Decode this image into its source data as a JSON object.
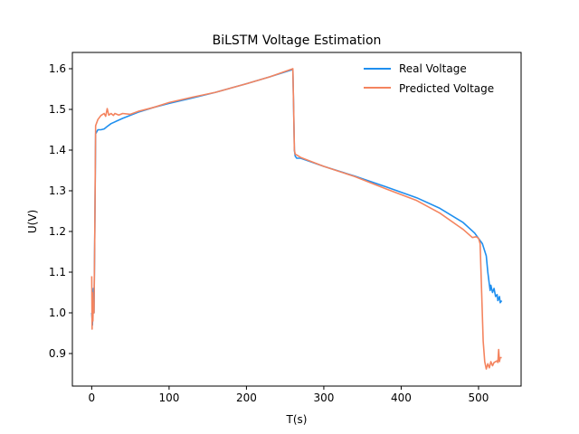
{
  "chart_data": {
    "type": "line",
    "title": "BiLSTM Voltage Estimation",
    "xlabel": "T(s)",
    "ylabel": "U(V)",
    "xlim": [
      -25,
      555
    ],
    "ylim": [
      0.82,
      1.64
    ],
    "x_ticks": [
      0,
      100,
      200,
      300,
      400,
      500
    ],
    "y_ticks": [
      0.9,
      1.0,
      1.1,
      1.2,
      1.3,
      1.4,
      1.5,
      1.6
    ],
    "x_tick_labels": [
      "0",
      "100",
      "200",
      "300",
      "400",
      "500"
    ],
    "y_tick_labels": [
      "0.9",
      "1.0",
      "1.1",
      "1.2",
      "1.3",
      "1.4",
      "1.5",
      "1.6"
    ],
    "grid": false,
    "legend_position": "top-right",
    "series": [
      {
        "name": "Real Voltage",
        "color": "#1f8fef",
        "x": [
          0,
          1,
          2,
          3,
          4,
          5,
          8,
          12,
          16,
          20,
          25,
          40,
          60,
          80,
          100,
          130,
          160,
          200,
          230,
          260,
          261,
          262,
          263,
          265,
          270,
          300,
          340,
          380,
          420,
          450,
          480,
          495,
          505,
          510,
          512,
          514,
          515,
          516,
          518,
          520,
          522,
          524,
          525,
          527,
          528,
          530
        ],
        "y": [
          1.0,
          0.97,
          1.06,
          1.0,
          1.2,
          1.44,
          1.45,
          1.45,
          1.452,
          1.458,
          1.465,
          1.478,
          1.493,
          1.505,
          1.515,
          1.528,
          1.542,
          1.563,
          1.58,
          1.598,
          1.5,
          1.4,
          1.385,
          1.38,
          1.38,
          1.36,
          1.336,
          1.31,
          1.283,
          1.257,
          1.222,
          1.196,
          1.17,
          1.14,
          1.1,
          1.07,
          1.055,
          1.068,
          1.05,
          1.06,
          1.04,
          1.045,
          1.03,
          1.04,
          1.025,
          1.03
        ]
      },
      {
        "name": "Predicted Voltage",
        "color": "#f4845f",
        "x": [
          0,
          0.5,
          1,
          1.5,
          2,
          3,
          4,
          5,
          8,
          12,
          16,
          18,
          20,
          22,
          25,
          28,
          30,
          35,
          40,
          50,
          60,
          80,
          100,
          130,
          160,
          200,
          230,
          260,
          261,
          262,
          263,
          265,
          270,
          300,
          340,
          380,
          420,
          450,
          480,
          492,
          497,
          500,
          502,
          504,
          506,
          508,
          510,
          512,
          514,
          516,
          518,
          520,
          522,
          524,
          525,
          526,
          527,
          528,
          530
        ],
        "y": [
          1.09,
          0.96,
          1.05,
          0.98,
          1.02,
          1.0,
          1.2,
          1.46,
          1.475,
          1.485,
          1.49,
          1.483,
          1.502,
          1.486,
          1.49,
          1.485,
          1.49,
          1.486,
          1.49,
          1.488,
          1.495,
          1.505,
          1.517,
          1.53,
          1.542,
          1.563,
          1.58,
          1.6,
          1.5,
          1.4,
          1.39,
          1.388,
          1.382,
          1.36,
          1.335,
          1.305,
          1.276,
          1.245,
          1.205,
          1.185,
          1.187,
          1.183,
          1.17,
          1.05,
          0.93,
          0.88,
          0.862,
          0.875,
          0.865,
          0.88,
          0.87,
          0.878,
          0.88,
          0.882,
          0.878,
          0.91,
          0.88,
          0.89,
          0.89
        ]
      }
    ]
  }
}
